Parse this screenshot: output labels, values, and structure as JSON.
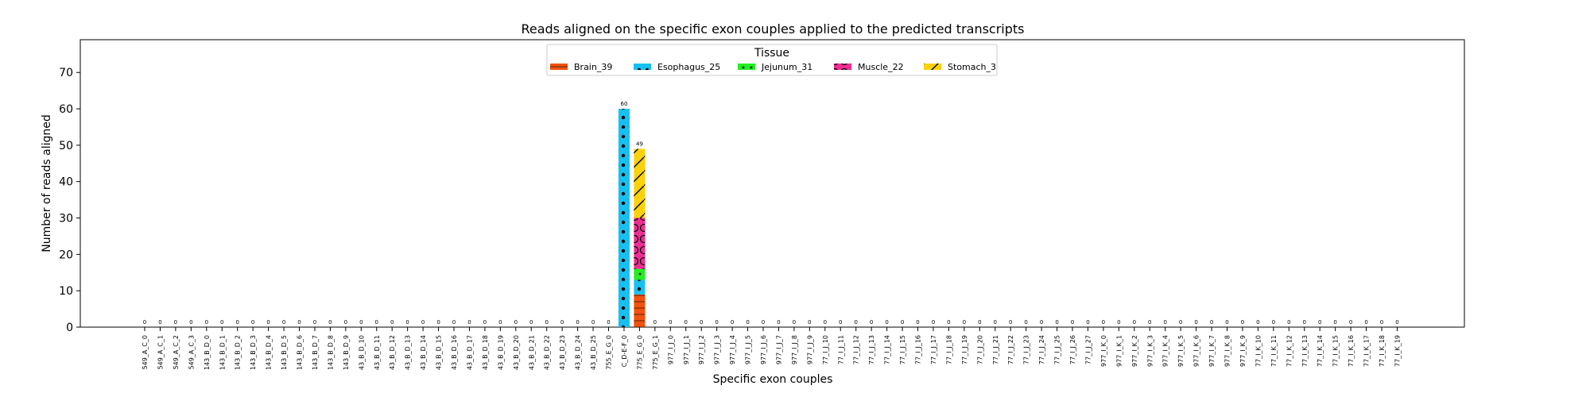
{
  "chart_data": {
    "type": "bar",
    "title": "Reads aligned on the specific exon couples applied to the predicted transcripts",
    "xlabel": "Specific exon couples",
    "ylabel": "Number of reads aligned",
    "ylim": [
      0,
      79
    ],
    "yticks": [
      0,
      10,
      20,
      30,
      40,
      50,
      60,
      70
    ],
    "grid": false,
    "legend": {
      "title": "Tissue",
      "placement": "top-center",
      "entries": [
        "Brain_39",
        "Esophagus_25",
        "Jejunum_31",
        "Muscle_22",
        "Stomach_3"
      ]
    },
    "series_colors": {
      "Brain_39": "#f0520f",
      "Esophagus_25": "#18c0f0",
      "Jejunum_31": "#22ee22",
      "Muscle_22": "#ef2e93",
      "Stomach_3": "#fdd20a"
    },
    "series_patterns": {
      "Brain_39": "hline",
      "Esophagus_25": "dots",
      "Jejunum_31": "cross",
      "Muscle_22": "circles",
      "Stomach_3": "diag"
    },
    "categories": [
      "549_A_C_0",
      "549_A_C_1",
      "549_A_C_2",
      "549_A_C_3",
      "143_B_D_0",
      "143_B_D_1",
      "143_B_D_2",
      "143_B_D_3",
      "143_B_D_4",
      "143_B_D_5",
      "143_B_D_6",
      "143_B_D_7",
      "143_B_D_8",
      "143_B_D_9",
      "43_B_D_10",
      "43_B_D_11",
      "43_B_D_12",
      "43_B_D_13",
      "43_B_D_14",
      "43_B_D_15",
      "43_B_D_16",
      "43_B_D_17",
      "43_B_D_18",
      "43_B_D_19",
      "43_B_D_20",
      "43_B_D_21",
      "43_B_D_22",
      "43_B_D_23",
      "43_B_D_24",
      "43_B_D_25",
      "755_E_G_0",
      "C_D-E-F_0",
      "775_E_G_0",
      "775_E_G_1",
      "977_I_J_0",
      "977_I_J_1",
      "977_I_J_2",
      "977_I_J_3",
      "977_I_J_4",
      "977_I_J_5",
      "977_I_J_6",
      "977_I_J_7",
      "977_I_J_8",
      "977_I_J_9",
      "77_I_J_10",
      "77_I_J_11",
      "77_I_J_12",
      "77_I_J_13",
      "77_I_J_14",
      "77_I_J_15",
      "77_I_J_16",
      "77_I_J_17",
      "77_I_J_18",
      "77_I_J_19",
      "77_I_J_20",
      "77_I_J_21",
      "77_I_J_22",
      "77_I_J_23",
      "77_I_J_24",
      "77_I_J_25",
      "77_I_J_26",
      "77_I_J_27",
      "977_I_K_0",
      "977_I_K_1",
      "977_I_K_2",
      "977_I_K_3",
      "977_I_K_4",
      "977_I_K_5",
      "977_I_K_6",
      "977_I_K_7",
      "977_I_K_8",
      "977_I_K_9",
      "77_I_K_10",
      "77_I_K_11",
      "77_I_K_12",
      "77_I_K_13",
      "77_I_K_14",
      "77_I_K_15",
      "77_I_K_16",
      "77_I_K_17",
      "77_I_K_18",
      "77_I_K_19"
    ],
    "totals": [
      0,
      0,
      0,
      0,
      0,
      0,
      0,
      0,
      0,
      0,
      0,
      0,
      0,
      0,
      0,
      0,
      0,
      0,
      0,
      0,
      0,
      0,
      0,
      0,
      0,
      0,
      0,
      0,
      0,
      0,
      0,
      60,
      49,
      0,
      0,
      0,
      0,
      0,
      0,
      0,
      0,
      0,
      0,
      0,
      0,
      0,
      0,
      0,
      0,
      0,
      0,
      0,
      0,
      0,
      0,
      0,
      0,
      0,
      0,
      0,
      0,
      0,
      0,
      0,
      0,
      0,
      0,
      0,
      0,
      0,
      0,
      0,
      0,
      0,
      0,
      0,
      0,
      0,
      0,
      0,
      0,
      0
    ],
    "series": [
      {
        "name": "Brain_39",
        "values": {
          "775_E_G_0": 9
        }
      },
      {
        "name": "Esophagus_25",
        "values": {
          "C_D-E-F_0": 60,
          "775_E_G_0": 4
        }
      },
      {
        "name": "Jejunum_31",
        "values": {
          "775_E_G_0": 3
        }
      },
      {
        "name": "Muscle_22",
        "values": {
          "775_E_G_0": 14
        }
      },
      {
        "name": "Stomach_3",
        "values": {
          "775_E_G_0": 19
        }
      }
    ]
  }
}
